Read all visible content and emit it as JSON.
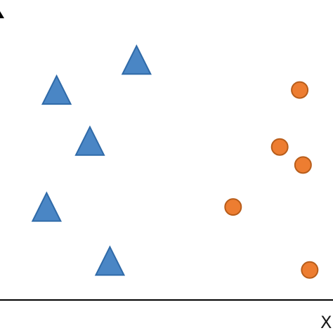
{
  "chart_data": {
    "type": "scatter",
    "title": "",
    "xlabel": "X",
    "ylabel": "",
    "grid": false,
    "legend": "none",
    "axes_color": "#000000",
    "series": [
      {
        "marker": "triangle",
        "color": "#4a86c5",
        "stroke": "#2f6aa8",
        "points": [
          {
            "x": 0.41,
            "y": 0.8
          },
          {
            "x": 0.17,
            "y": 0.7
          },
          {
            "x": 0.27,
            "y": 0.53
          },
          {
            "x": 0.14,
            "y": 0.31
          },
          {
            "x": 0.33,
            "y": 0.13
          }
        ]
      },
      {
        "marker": "circle",
        "color": "#ed7d31",
        "stroke": "#b85d1a",
        "points": [
          {
            "x": 0.9,
            "y": 0.7
          },
          {
            "x": 0.84,
            "y": 0.51
          },
          {
            "x": 0.91,
            "y": 0.45
          },
          {
            "x": 0.7,
            "y": 0.31
          },
          {
            "x": 0.93,
            "y": 0.1
          }
        ]
      }
    ]
  }
}
